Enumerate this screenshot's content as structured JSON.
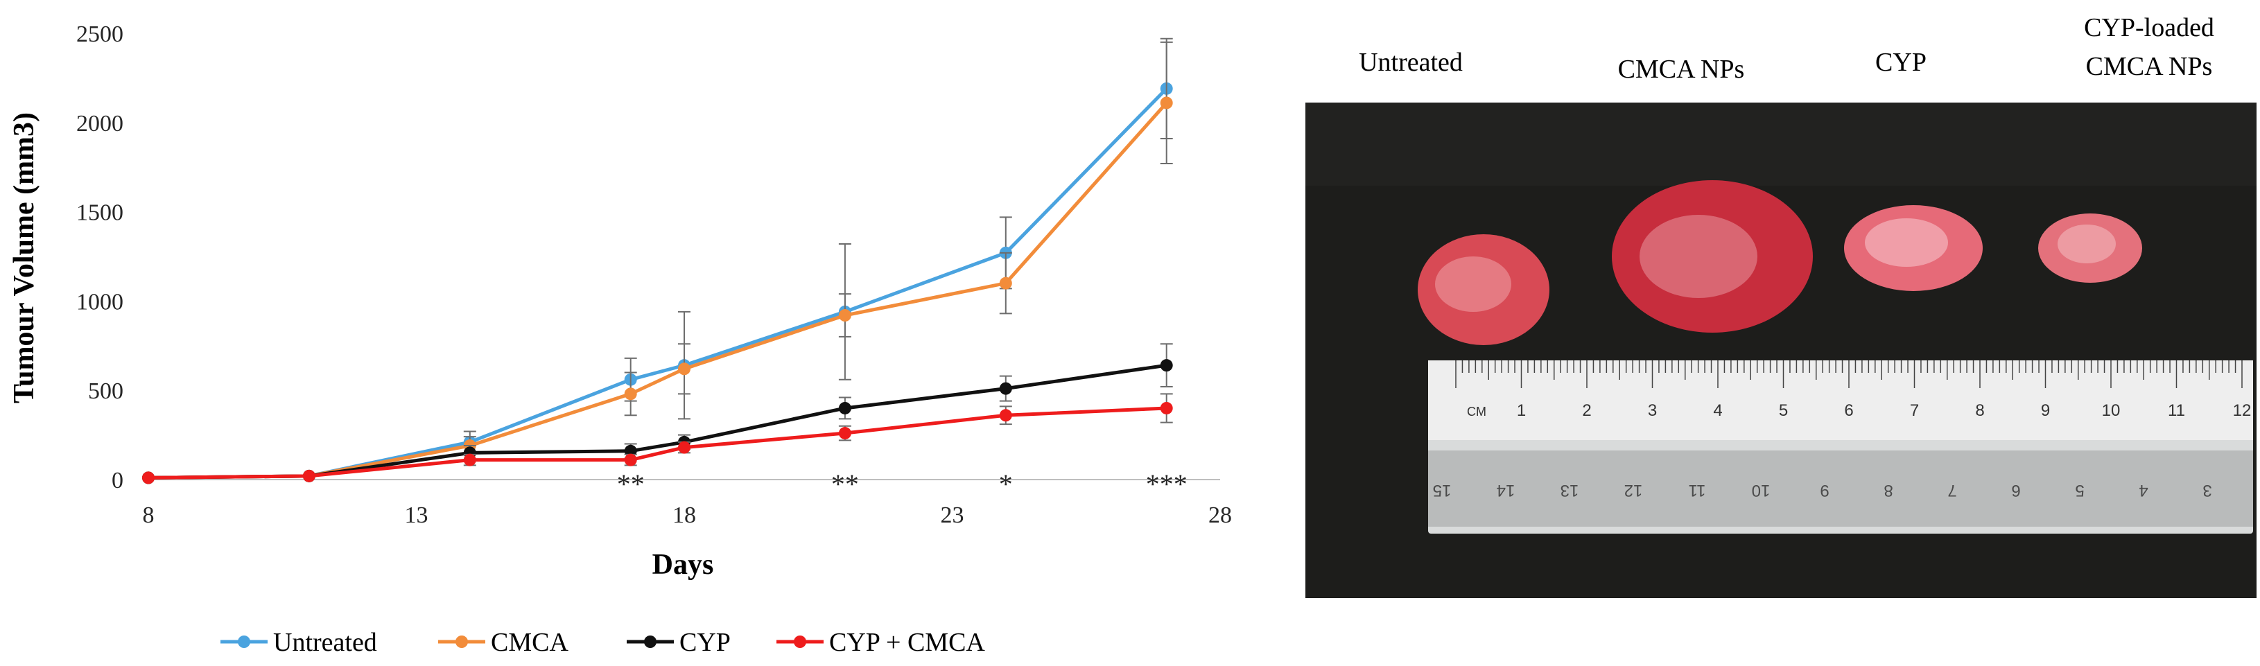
{
  "chart_data": {
    "type": "line",
    "xlabel": "Days",
    "ylabel": "Tumour Volume (mm3)",
    "xlim": [
      8,
      28
    ],
    "ylim": [
      0,
      2500
    ],
    "xticks": [
      8,
      13,
      18,
      23,
      28
    ],
    "yticks": [
      0,
      500,
      1000,
      1500,
      2000,
      2500
    ],
    "x": [
      8,
      11,
      14,
      17,
      18,
      21,
      24,
      27
    ],
    "series": [
      {
        "name": "Untreated",
        "color": "#4aa3df",
        "values": [
          10,
          20,
          210,
          560,
          640,
          940,
          1270,
          2190
        ],
        "err": [
          0,
          0,
          60,
          120,
          300,
          380,
          200,
          280
        ]
      },
      {
        "name": "CMCA",
        "color": "#f28c3a",
        "values": [
          10,
          20,
          190,
          480,
          620,
          920,
          1100,
          2110
        ],
        "err": [
          0,
          0,
          50,
          120,
          140,
          120,
          170,
          340
        ]
      },
      {
        "name": "CYP",
        "color": "#111111",
        "values": [
          10,
          20,
          150,
          160,
          210,
          400,
          510,
          640
        ],
        "err": [
          0,
          0,
          40,
          40,
          40,
          60,
          70,
          120
        ]
      },
      {
        "name": "CYP + CMCA",
        "color": "#ee1c1c",
        "values": [
          10,
          20,
          110,
          110,
          180,
          260,
          360,
          400
        ],
        "err": [
          0,
          0,
          30,
          30,
          30,
          40,
          50,
          80
        ]
      }
    ],
    "annotations": [
      {
        "x": 17,
        "text": "**"
      },
      {
        "x": 21,
        "text": "**"
      },
      {
        "x": 24,
        "text": "*"
      },
      {
        "x": 27,
        "text": "***"
      }
    ]
  },
  "photo": {
    "labels": [
      "Untreated",
      "CMCA NPs",
      "CYP",
      "CYP-loaded",
      "CMCA NPs"
    ],
    "ruler_cm_top": [
      "CM",
      "1",
      "2",
      "3",
      "4",
      "5",
      "6",
      "7",
      "8",
      "9",
      "10",
      "11",
      "12"
    ],
    "ruler_inverted_bottom": [
      "15",
      "14",
      "13",
      "12",
      "11",
      "10",
      "9",
      "8",
      "7",
      "6",
      "5",
      "4",
      "3"
    ]
  }
}
